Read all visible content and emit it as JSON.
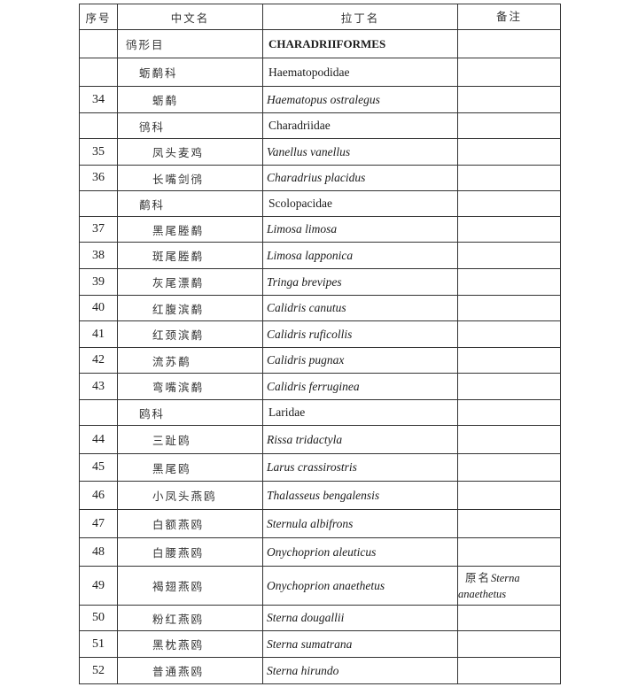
{
  "headers": [
    "序号",
    "中文名",
    "拉丁名",
    "备注"
  ],
  "rows": [
    {
      "no": "",
      "cn": "鸻形目",
      "latin": "CHARADRIIFORMES",
      "note_cn": "",
      "note_latin": "",
      "level": "order"
    },
    {
      "no": "",
      "cn": "蛎鹬科",
      "latin": "Haematopodidae",
      "note_cn": "",
      "note_latin": "",
      "level": "family"
    },
    {
      "no": "34",
      "cn": "蛎鹬",
      "latin": "Haematopus ostralegus",
      "note_cn": "",
      "note_latin": "",
      "level": "species"
    },
    {
      "no": "",
      "cn": "鸻科",
      "latin": "Charadriidae",
      "note_cn": "",
      "note_latin": "",
      "level": "family"
    },
    {
      "no": "35",
      "cn": "凤头麦鸡",
      "latin": "Vanellus vanellus",
      "note_cn": "",
      "note_latin": "",
      "level": "species"
    },
    {
      "no": "36",
      "cn": "长嘴剑鸻",
      "latin": "Charadrius placidus",
      "note_cn": "",
      "note_latin": "",
      "level": "species"
    },
    {
      "no": "",
      "cn": "鹬科",
      "latin": "Scolopacidae",
      "note_cn": "",
      "note_latin": "",
      "level": "family"
    },
    {
      "no": "37",
      "cn": "黑尾塍鹬",
      "latin": "Limosa limosa",
      "note_cn": "",
      "note_latin": "",
      "level": "species"
    },
    {
      "no": "38",
      "cn": "斑尾塍鹬",
      "latin": "Limosa lapponica",
      "note_cn": "",
      "note_latin": "",
      "level": "species"
    },
    {
      "no": "39",
      "cn": "灰尾漂鹬",
      "latin": "Tringa brevipes",
      "note_cn": "",
      "note_latin": "",
      "level": "species"
    },
    {
      "no": "40",
      "cn": "红腹滨鹬",
      "latin": "Calidris canutus",
      "note_cn": "",
      "note_latin": "",
      "level": "species"
    },
    {
      "no": "41",
      "cn": "红颈滨鹬",
      "latin": "Calidris ruficollis",
      "note_cn": "",
      "note_latin": "",
      "level": "species"
    },
    {
      "no": "42",
      "cn": "流苏鹬",
      "latin": "Calidris pugnax",
      "note_cn": "",
      "note_latin": "",
      "level": "species"
    },
    {
      "no": "43",
      "cn": "弯嘴滨鹬",
      "latin": "Calidris ferruginea",
      "note_cn": "",
      "note_latin": "",
      "level": "species"
    },
    {
      "no": "",
      "cn": "鸥科",
      "latin": "Laridae",
      "note_cn": "",
      "note_latin": "",
      "level": "family"
    },
    {
      "no": "44",
      "cn": "三趾鸥",
      "latin": "Rissa tridactyla",
      "note_cn": "",
      "note_latin": "",
      "level": "species"
    },
    {
      "no": "45",
      "cn": "黑尾鸥",
      "latin": "Larus crassirostris",
      "note_cn": "",
      "note_latin": "",
      "level": "species"
    },
    {
      "no": "46",
      "cn": "小凤头燕鸥",
      "latin": "Thalasseus bengalensis",
      "note_cn": "",
      "note_latin": "",
      "level": "species"
    },
    {
      "no": "47",
      "cn": "白额燕鸥",
      "latin": "Sternula albifrons",
      "note_cn": "",
      "note_latin": "",
      "level": "species"
    },
    {
      "no": "48",
      "cn": "白腰燕鸥",
      "latin": "Onychoprion aleuticus",
      "note_cn": "",
      "note_latin": "",
      "level": "species"
    },
    {
      "no": "49",
      "cn": "褐翅燕鸥",
      "latin": "Onychoprion anaethetus",
      "note_cn": "原名",
      "note_latin": "Sterna anaethetus",
      "level": "species"
    },
    {
      "no": "50",
      "cn": "粉红燕鸥",
      "latin": "Sterna dougallii",
      "note_cn": "",
      "note_latin": "",
      "level": "species"
    },
    {
      "no": "51",
      "cn": "黑枕燕鸥",
      "latin": "Sterna sumatrana",
      "note_cn": "",
      "note_latin": "",
      "level": "species"
    },
    {
      "no": "52",
      "cn": "普通燕鸥",
      "latin": "Sterna hirundo",
      "note_cn": "",
      "note_latin": "",
      "level": "species"
    }
  ]
}
